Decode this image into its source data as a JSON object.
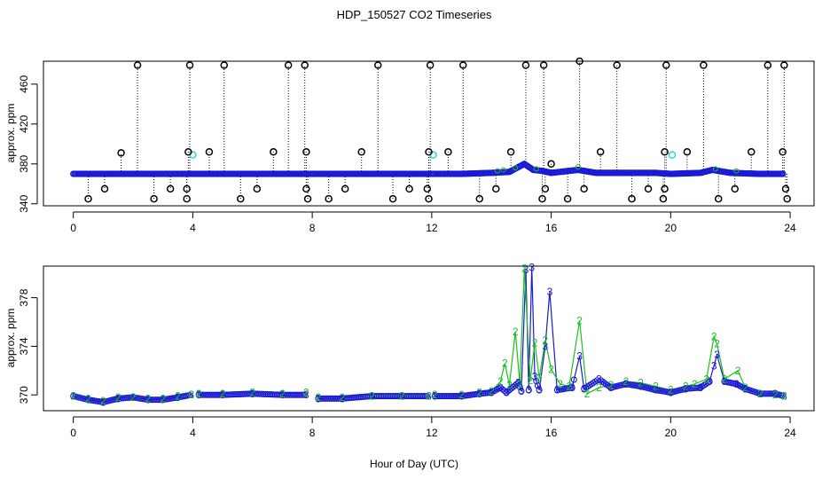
{
  "figure": {
    "title": "HDP_150527  CO2 Timeseries",
    "xlabel": "Hour of Day (UTC)"
  },
  "colors": {
    "black": "#000000",
    "blue": "#1a1ad6",
    "cyan": "#2bd6d6",
    "green": "#1fbf1f"
  },
  "chart_data": [
    {
      "type": "scatter",
      "title": "HDP_150527  CO2 Timeseries",
      "xlabel": "",
      "ylabel": "approx. ppm",
      "xlim": [
        -1,
        24.8
      ],
      "ylim": [
        338,
        483
      ],
      "x_ticks": [
        0,
        4,
        8,
        12,
        16,
        20,
        24
      ],
      "y_ticks": [
        340,
        380,
        420,
        460
      ],
      "baseline_series": {
        "name": "blue baseline",
        "color": "blue",
        "points": [
          [
            0.0,
            370
          ],
          [
            1.0,
            370
          ],
          [
            2.0,
            370
          ],
          [
            3.0,
            370
          ],
          [
            3.9,
            370
          ],
          [
            4.0,
            370
          ],
          [
            5.0,
            370
          ],
          [
            6.0,
            370
          ],
          [
            7.0,
            370
          ],
          [
            7.7,
            370
          ],
          [
            8.0,
            370
          ],
          [
            9.0,
            370
          ],
          [
            10.0,
            370
          ],
          [
            11.0,
            370
          ],
          [
            11.9,
            370
          ],
          [
            12.0,
            370
          ],
          [
            13.0,
            370
          ],
          [
            14.0,
            371
          ],
          [
            14.6,
            372
          ],
          [
            15.1,
            380
          ],
          [
            15.4,
            374
          ],
          [
            15.7,
            373
          ],
          [
            16.0,
            371
          ],
          [
            16.9,
            374
          ],
          [
            17.5,
            371
          ],
          [
            18.5,
            371
          ],
          [
            19.5,
            371
          ],
          [
            20.0,
            370
          ],
          [
            21.0,
            371
          ],
          [
            21.4,
            374
          ],
          [
            22.0,
            371
          ],
          [
            23.0,
            370
          ],
          [
            23.8,
            370
          ]
        ]
      },
      "spikes": {
        "name": "black outliers",
        "color": "black",
        "points": [
          [
            0.5,
            345
          ],
          [
            1.05,
            355
          ],
          [
            1.6,
            391
          ],
          [
            2.15,
            479
          ],
          [
            2.7,
            345
          ],
          [
            3.25,
            355
          ],
          [
            3.8,
            345
          ],
          [
            3.8,
            355
          ],
          [
            3.85,
            392
          ],
          [
            3.9,
            479
          ],
          [
            4.55,
            392
          ],
          [
            5.05,
            479
          ],
          [
            5.6,
            345
          ],
          [
            6.15,
            355
          ],
          [
            6.7,
            392
          ],
          [
            7.2,
            479
          ],
          [
            7.75,
            479
          ],
          [
            7.8,
            355
          ],
          [
            7.8,
            392
          ],
          [
            7.85,
            345
          ],
          [
            8.55,
            345
          ],
          [
            9.1,
            355
          ],
          [
            9.65,
            392
          ],
          [
            10.2,
            479
          ],
          [
            10.7,
            345
          ],
          [
            11.25,
            355
          ],
          [
            11.85,
            355
          ],
          [
            11.9,
            345
          ],
          [
            11.9,
            392
          ],
          [
            11.95,
            479
          ],
          [
            12.55,
            392
          ],
          [
            13.05,
            479
          ],
          [
            13.6,
            345
          ],
          [
            14.15,
            355
          ],
          [
            14.65,
            392
          ],
          [
            15.15,
            479
          ],
          [
            15.7,
            345
          ],
          [
            15.75,
            479
          ],
          [
            15.8,
            355
          ],
          [
            16.0,
            380
          ],
          [
            16.55,
            345
          ],
          [
            16.95,
            483
          ],
          [
            17.1,
            355
          ],
          [
            17.65,
            392
          ],
          [
            18.2,
            479
          ],
          [
            18.7,
            345
          ],
          [
            19.25,
            355
          ],
          [
            19.75,
            345
          ],
          [
            19.8,
            355
          ],
          [
            19.8,
            392
          ],
          [
            19.85,
            479
          ],
          [
            20.55,
            392
          ],
          [
            21.1,
            479
          ],
          [
            21.6,
            345
          ],
          [
            22.15,
            355
          ],
          [
            22.7,
            392
          ],
          [
            23.25,
            479
          ],
          [
            23.75,
            392
          ],
          [
            23.8,
            479
          ],
          [
            23.85,
            355
          ],
          [
            23.9,
            345
          ]
        ]
      },
      "cyan_points": [
        [
          4.0,
          389
        ],
        [
          12.05,
          389
        ],
        [
          20.05,
          389
        ]
      ]
    },
    {
      "type": "line",
      "title": "",
      "xlabel": "Hour of Day (UTC)",
      "ylabel": "approx. ppm",
      "xlim": [
        -1,
        24.8
      ],
      "ylim": [
        368.7,
        380.6
      ],
      "x_ticks": [
        0,
        4,
        8,
        12,
        16,
        20,
        24
      ],
      "y_ticks": [
        370,
        374,
        378
      ],
      "series": [
        {
          "name": "3",
          "color": "blue",
          "points": [
            [
              0.0,
              369.9
            ],
            [
              0.5,
              369.6
            ],
            [
              1.0,
              369.4
            ],
            [
              1.5,
              369.7
            ],
            [
              2.0,
              369.8
            ],
            [
              2.5,
              369.6
            ],
            [
              3.0,
              369.6
            ],
            [
              3.5,
              369.8
            ],
            [
              3.95,
              370.0
            ],
            [
              4.2,
              370.0
            ],
            [
              5.0,
              370.0
            ],
            [
              6.0,
              370.1
            ],
            [
              7.0,
              370.0
            ],
            [
              7.8,
              370.0
            ],
            [
              8.2,
              369.7
            ],
            [
              9.0,
              369.7
            ],
            [
              10.0,
              369.9
            ],
            [
              11.0,
              369.9
            ],
            [
              11.9,
              369.9
            ],
            [
              12.1,
              369.9
            ],
            [
              13.0,
              369.9
            ],
            [
              13.6,
              370.1
            ],
            [
              14.0,
              370.2
            ],
            [
              14.3,
              370.6
            ],
            [
              14.5,
              370.2
            ],
            [
              14.9,
              371.0
            ],
            [
              15.0,
              370.3
            ],
            [
              15.15,
              380.3
            ],
            [
              15.25,
              370.4
            ],
            [
              15.35,
              380.5
            ],
            [
              15.45,
              371.5
            ],
            [
              15.6,
              370.4
            ],
            [
              15.8,
              374.0
            ],
            [
              15.95,
              378.5
            ],
            [
              16.2,
              370.4
            ],
            [
              16.7,
              370.6
            ],
            [
              16.95,
              373.2
            ],
            [
              17.1,
              370.5
            ],
            [
              17.6,
              371.3
            ],
            [
              18.0,
              370.6
            ],
            [
              18.5,
              370.9
            ],
            [
              19.0,
              370.7
            ],
            [
              19.5,
              370.4
            ],
            [
              20.0,
              370.2
            ],
            [
              20.5,
              370.5
            ],
            [
              21.0,
              370.6
            ],
            [
              21.3,
              371.1
            ],
            [
              21.45,
              372.4
            ],
            [
              21.55,
              373.3
            ],
            [
              21.8,
              371.1
            ],
            [
              22.2,
              370.9
            ],
            [
              22.5,
              370.5
            ],
            [
              23.0,
              370.1
            ],
            [
              23.5,
              370.1
            ],
            [
              23.8,
              369.9
            ]
          ]
        },
        {
          "name": "2",
          "color": "green",
          "points": [
            [
              0.0,
              369.9
            ],
            [
              0.5,
              369.7
            ],
            [
              1.0,
              369.5
            ],
            [
              1.5,
              369.8
            ],
            [
              2.0,
              369.8
            ],
            [
              2.5,
              369.7
            ],
            [
              3.0,
              369.7
            ],
            [
              3.5,
              369.9
            ],
            [
              3.95,
              370.0
            ],
            [
              4.2,
              370.1
            ],
            [
              5.0,
              370.1
            ],
            [
              6.0,
              370.2
            ],
            [
              7.0,
              370.1
            ],
            [
              7.8,
              370.2
            ],
            [
              8.2,
              369.8
            ],
            [
              9.0,
              369.8
            ],
            [
              10.0,
              369.9
            ],
            [
              11.0,
              369.9
            ],
            [
              11.9,
              369.9
            ],
            [
              12.1,
              370.0
            ],
            [
              13.0,
              370.0
            ],
            [
              13.6,
              370.2
            ],
            [
              14.0,
              370.3
            ],
            [
              14.3,
              371.1
            ],
            [
              14.45,
              372.6
            ],
            [
              14.6,
              370.8
            ],
            [
              14.8,
              375.2
            ],
            [
              14.95,
              370.9
            ],
            [
              15.1,
              380.4
            ],
            [
              15.3,
              371.2
            ],
            [
              15.45,
              374.3
            ],
            [
              15.6,
              371.4
            ],
            [
              15.8,
              374.5
            ],
            [
              16.0,
              372.1
            ],
            [
              16.3,
              370.9
            ],
            [
              16.6,
              370.7
            ],
            [
              16.95,
              376.1
            ],
            [
              17.2,
              370.1
            ],
            [
              17.6,
              370.6
            ],
            [
              18.0,
              370.8
            ],
            [
              18.5,
              371.1
            ],
            [
              19.0,
              371.0
            ],
            [
              19.5,
              370.7
            ],
            [
              20.0,
              370.4
            ],
            [
              20.5,
              370.7
            ],
            [
              20.8,
              370.9
            ],
            [
              21.2,
              371.3
            ],
            [
              21.45,
              374.8
            ],
            [
              21.55,
              374.2
            ],
            [
              21.8,
              371.3
            ],
            [
              22.25,
              372.0
            ],
            [
              22.5,
              370.6
            ],
            [
              23.0,
              370.1
            ],
            [
              23.5,
              370.0
            ],
            [
              23.8,
              369.9
            ]
          ]
        }
      ]
    }
  ]
}
